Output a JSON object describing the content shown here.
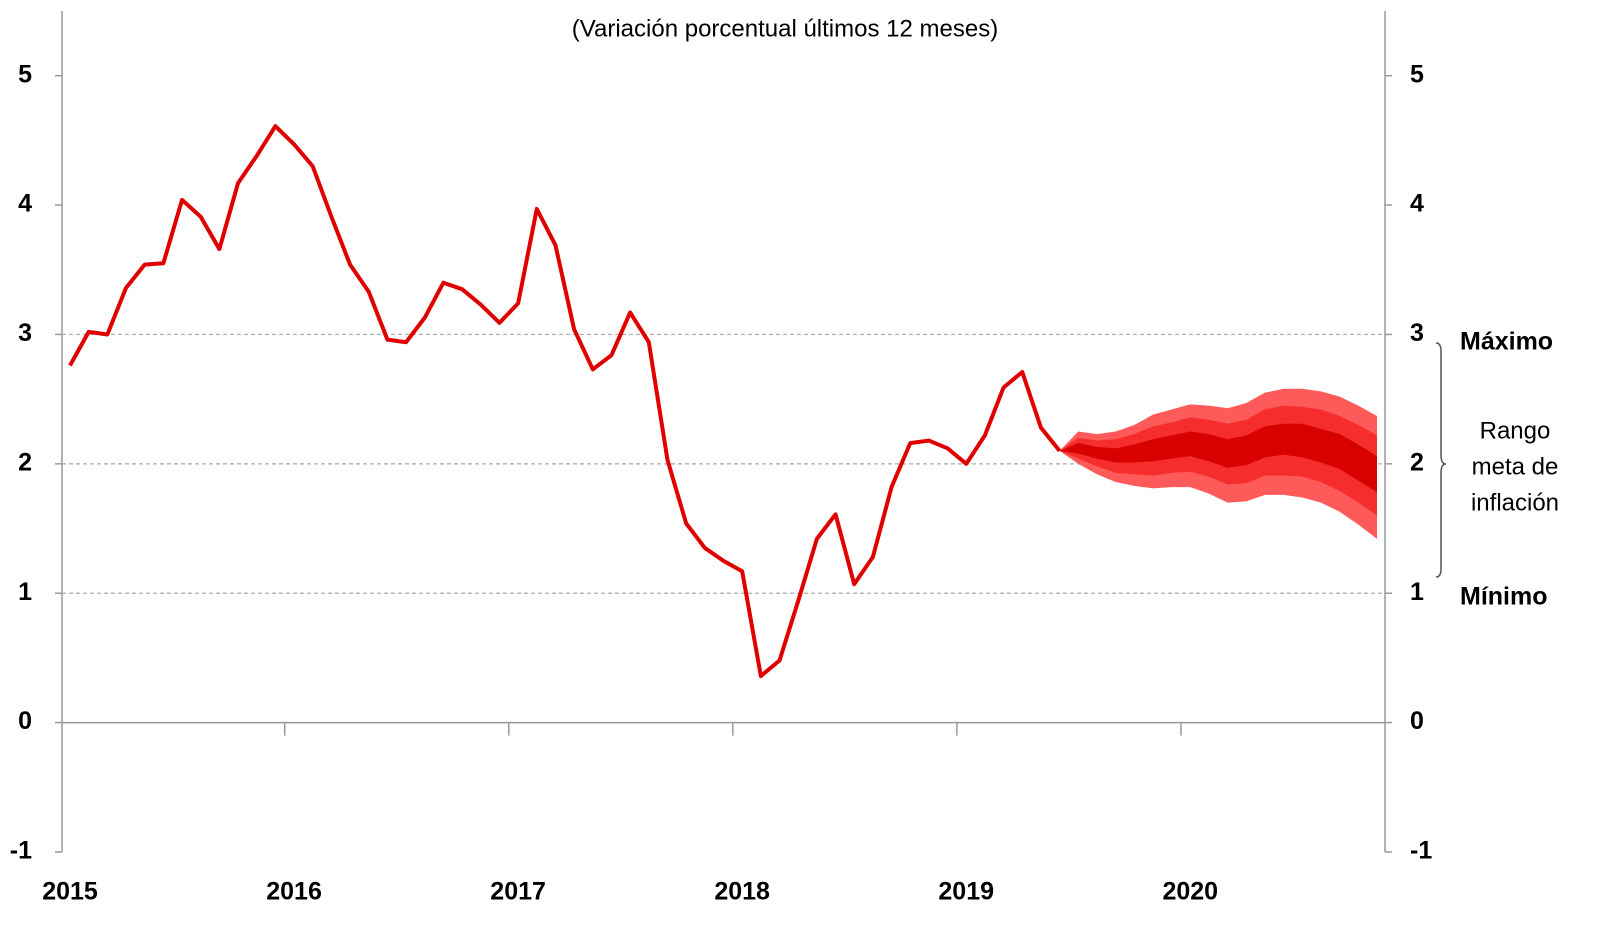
{
  "chart_data": {
    "type": "fan",
    "subtitle": "(Variación porcentual últimos 12 meses)",
    "categories": [
      "2015",
      null,
      null,
      null,
      null,
      null,
      null,
      null,
      null,
      null,
      null,
      null,
      "2016",
      null,
      null,
      null,
      null,
      null,
      null,
      null,
      null,
      null,
      null,
      null,
      "2017",
      null,
      null,
      null,
      null,
      null,
      null,
      null,
      null,
      null,
      null,
      null,
      "2018",
      null,
      null,
      null,
      null,
      null,
      null,
      null,
      null,
      null,
      null,
      null,
      "2019",
      null,
      null,
      null,
      null,
      null,
      null,
      null,
      null,
      null,
      null,
      null,
      "2020",
      null,
      null,
      null,
      null,
      null,
      null,
      null,
      null,
      null,
      null
    ],
    "series": [
      {
        "color": "#e00000",
        "values": [
          2.76,
          3.02,
          3.0,
          3.36,
          3.54,
          3.55,
          4.04,
          3.91,
          3.66,
          4.17,
          4.38,
          4.61,
          4.47,
          4.3,
          3.91,
          3.54,
          3.33,
          2.96,
          2.94,
          3.13,
          3.4,
          3.35,
          3.23,
          3.09,
          3.24,
          3.97,
          3.69,
          3.04,
          2.73,
          2.84,
          3.17,
          2.94,
          2.03,
          1.54,
          1.35,
          1.25,
          1.17,
          0.36,
          0.48,
          0.94,
          1.42,
          1.61,
          1.07,
          1.28,
          1.82,
          2.16,
          2.18,
          2.12,
          2.0,
          2.22,
          2.59,
          2.71,
          2.28,
          2.1,
          null,
          null,
          null,
          null,
          null,
          null,
          null,
          null,
          null,
          null,
          null,
          null,
          null,
          null,
          null,
          null,
          null
        ]
      }
    ],
    "fan": [
      {
        "color": "#ff5a5a",
        "upper": [
          null,
          null,
          null,
          null,
          null,
          null,
          null,
          null,
          null,
          null,
          null,
          null,
          null,
          null,
          null,
          null,
          null,
          null,
          null,
          null,
          null,
          null,
          null,
          null,
          null,
          null,
          null,
          null,
          null,
          null,
          null,
          null,
          null,
          null,
          null,
          null,
          null,
          null,
          null,
          null,
          null,
          null,
          null,
          null,
          null,
          null,
          null,
          null,
          null,
          null,
          null,
          null,
          null,
          2.1,
          2.25,
          2.23,
          2.25,
          2.3,
          2.38,
          2.42,
          2.46,
          2.45,
          2.43,
          2.47,
          2.55,
          2.58,
          2.58,
          2.56,
          2.52,
          2.45,
          2.37
        ],
        "lower": [
          null,
          null,
          null,
          null,
          null,
          null,
          null,
          null,
          null,
          null,
          null,
          null,
          null,
          null,
          null,
          null,
          null,
          null,
          null,
          null,
          null,
          null,
          null,
          null,
          null,
          null,
          null,
          null,
          null,
          null,
          null,
          null,
          null,
          null,
          null,
          null,
          null,
          null,
          null,
          null,
          null,
          null,
          null,
          null,
          null,
          null,
          null,
          null,
          null,
          null,
          null,
          null,
          null,
          2.1,
          2.0,
          1.92,
          1.86,
          1.83,
          1.81,
          1.82,
          1.82,
          1.77,
          1.7,
          1.71,
          1.76,
          1.76,
          1.74,
          1.7,
          1.63,
          1.53,
          1.42
        ]
      },
      {
        "color": "#f52d2d",
        "upper": [
          null,
          null,
          null,
          null,
          null,
          null,
          null,
          null,
          null,
          null,
          null,
          null,
          null,
          null,
          null,
          null,
          null,
          null,
          null,
          null,
          null,
          null,
          null,
          null,
          null,
          null,
          null,
          null,
          null,
          null,
          null,
          null,
          null,
          null,
          null,
          null,
          null,
          null,
          null,
          null,
          null,
          null,
          null,
          null,
          null,
          null,
          null,
          null,
          null,
          null,
          null,
          null,
          null,
          2.1,
          2.2,
          2.18,
          2.19,
          2.23,
          2.29,
          2.32,
          2.36,
          2.34,
          2.31,
          2.34,
          2.42,
          2.45,
          2.44,
          2.42,
          2.37,
          2.3,
          2.22
        ],
        "lower": [
          null,
          null,
          null,
          null,
          null,
          null,
          null,
          null,
          null,
          null,
          null,
          null,
          null,
          null,
          null,
          null,
          null,
          null,
          null,
          null,
          null,
          null,
          null,
          null,
          null,
          null,
          null,
          null,
          null,
          null,
          null,
          null,
          null,
          null,
          null,
          null,
          null,
          null,
          null,
          null,
          null,
          null,
          null,
          null,
          null,
          null,
          null,
          null,
          null,
          null,
          null,
          null,
          null,
          2.1,
          2.04,
          1.98,
          1.93,
          1.92,
          1.91,
          1.93,
          1.94,
          1.9,
          1.84,
          1.85,
          1.91,
          1.91,
          1.9,
          1.86,
          1.79,
          1.7,
          1.6
        ]
      },
      {
        "color": "#d80000",
        "upper": [
          null,
          null,
          null,
          null,
          null,
          null,
          null,
          null,
          null,
          null,
          null,
          null,
          null,
          null,
          null,
          null,
          null,
          null,
          null,
          null,
          null,
          null,
          null,
          null,
          null,
          null,
          null,
          null,
          null,
          null,
          null,
          null,
          null,
          null,
          null,
          null,
          null,
          null,
          null,
          null,
          null,
          null,
          null,
          null,
          null,
          null,
          null,
          null,
          null,
          null,
          null,
          null,
          null,
          2.1,
          2.16,
          2.13,
          2.12,
          2.15,
          2.19,
          2.22,
          2.25,
          2.23,
          2.19,
          2.22,
          2.29,
          2.31,
          2.31,
          2.27,
          2.23,
          2.15,
          2.06
        ],
        "lower": [
          null,
          null,
          null,
          null,
          null,
          null,
          null,
          null,
          null,
          null,
          null,
          null,
          null,
          null,
          null,
          null,
          null,
          null,
          null,
          null,
          null,
          null,
          null,
          null,
          null,
          null,
          null,
          null,
          null,
          null,
          null,
          null,
          null,
          null,
          null,
          null,
          null,
          null,
          null,
          null,
          null,
          null,
          null,
          null,
          null,
          null,
          null,
          null,
          null,
          null,
          null,
          null,
          null,
          2.1,
          2.08,
          2.04,
          2.01,
          2.01,
          2.02,
          2.04,
          2.06,
          2.02,
          1.97,
          1.99,
          2.05,
          2.07,
          2.05,
          2.01,
          1.96,
          1.87,
          1.78
        ]
      }
    ],
    "ylim": [
      -1,
      5.5
    ],
    "yticks": [
      -1,
      0,
      1,
      2,
      3,
      4,
      5
    ],
    "y2lim": [
      -1,
      5.5
    ],
    "y2ticks": [
      -1,
      0,
      1,
      2,
      3,
      4,
      5
    ],
    "reference_lines": [
      1,
      2,
      3
    ],
    "annotation_max": "Máximo",
    "annotation_min": "Mínimo",
    "annotation_range": [
      "Rango",
      "meta de",
      "inflación"
    ]
  }
}
